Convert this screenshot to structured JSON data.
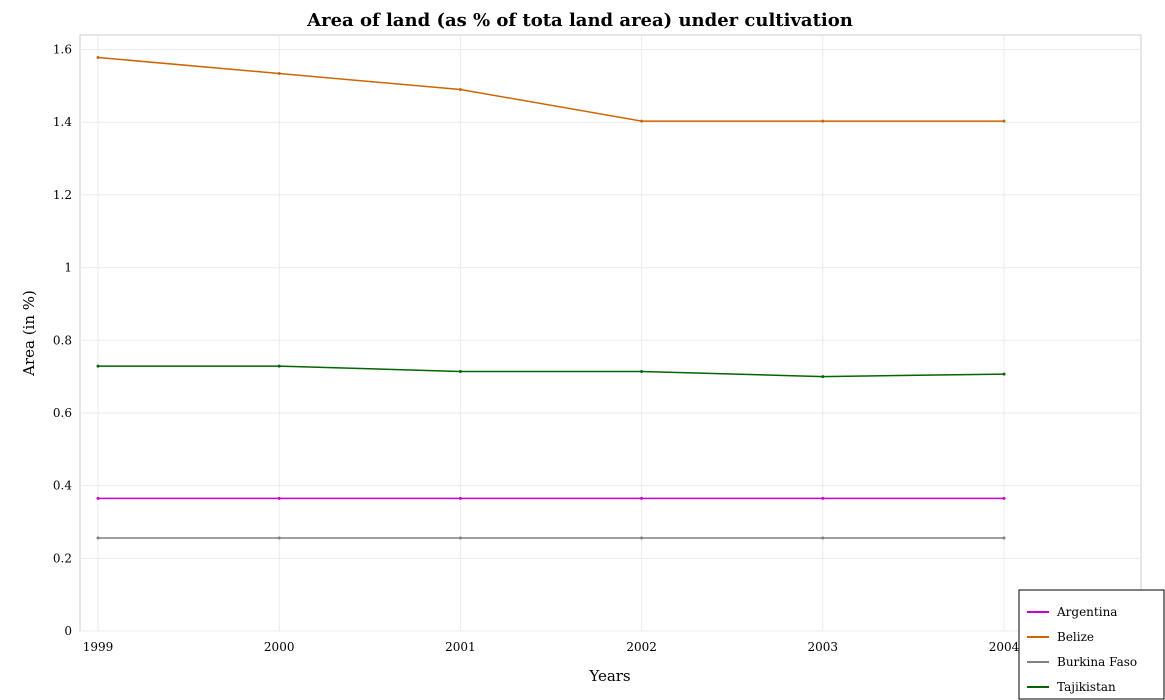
{
  "chart_data": {
    "type": "line",
    "title": "Area of land (as % of tota land area) under cultivation",
    "xlabel": "Years",
    "ylabel": "Area (in %)",
    "categories": [
      "1999",
      "2000",
      "2001",
      "2002",
      "2003",
      "2004"
    ],
    "ylim": [
      0,
      1.64
    ],
    "yticks": [
      0,
      0.2,
      0.4,
      0.6,
      0.8,
      1,
      1.2,
      1.4,
      1.6
    ],
    "ytick_labels": [
      "0",
      "0.2",
      "0.4",
      "0.6",
      "0.8",
      "1",
      "1.2",
      "1.4",
      "1.6"
    ],
    "grid": true,
    "legend_position": "bottom-right",
    "series": [
      {
        "name": "Argentina",
        "color": "#cc00cc",
        "values": [
          0.365,
          0.365,
          0.365,
          0.365,
          0.365,
          0.365
        ]
      },
      {
        "name": "Belize",
        "color": "#cc6600",
        "values": [
          1.578,
          1.534,
          1.49,
          1.403,
          1.403,
          1.403
        ]
      },
      {
        "name": "Burkina Faso",
        "color": "#808080",
        "values": [
          0.256,
          0.256,
          0.256,
          0.256,
          0.256,
          0.256
        ]
      },
      {
        "name": "Tajikistan",
        "color": "#006600",
        "values": [
          0.729,
          0.729,
          0.714,
          0.714,
          0.7,
          0.707
        ]
      }
    ]
  }
}
